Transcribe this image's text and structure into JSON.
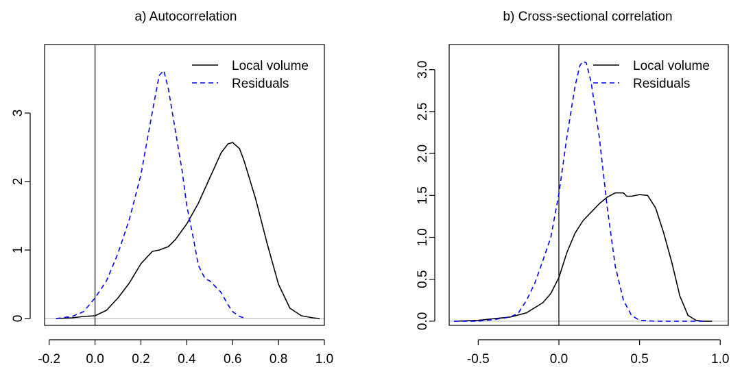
{
  "chart_data": [
    {
      "type": "line",
      "title": "a) Autocorrelation",
      "xlabel": "",
      "ylabel": "",
      "xlim": [
        -0.22,
        1.0
      ],
      "ylim": [
        -0.1,
        4.0
      ],
      "x_ticks": [
        -0.2,
        0.0,
        0.2,
        0.4,
        0.6,
        0.8,
        1.0
      ],
      "x_tick_labels": [
        "-0.2",
        "0.0",
        "0.2",
        "0.4",
        "0.6",
        "0.8",
        "1.0"
      ],
      "y_ticks": [
        0,
        1,
        2,
        3
      ],
      "y_tick_labels": [
        "0",
        "1",
        "2",
        "3"
      ],
      "vline_x": 0,
      "hline_y": 0,
      "legend_position": "top-right",
      "series": [
        {
          "name": "Local volume",
          "color": "#000000",
          "dash": "solid",
          "x": [
            -0.17,
            -0.1,
            -0.05,
            0.0,
            0.05,
            0.1,
            0.15,
            0.2,
            0.25,
            0.28,
            0.32,
            0.35,
            0.4,
            0.45,
            0.5,
            0.55,
            0.58,
            0.6,
            0.63,
            0.65,
            0.7,
            0.75,
            0.8,
            0.85,
            0.9,
            0.95,
            0.98
          ],
          "y": [
            0.0,
            0.01,
            0.03,
            0.04,
            0.12,
            0.3,
            0.52,
            0.8,
            0.98,
            1.0,
            1.05,
            1.15,
            1.38,
            1.68,
            2.05,
            2.42,
            2.55,
            2.57,
            2.48,
            2.3,
            1.75,
            1.1,
            0.5,
            0.15,
            0.04,
            0.01,
            0.0
          ]
        },
        {
          "name": "Residuals",
          "color": "#0000ff",
          "dash": "dashed",
          "x": [
            -0.17,
            -0.1,
            -0.05,
            0.0,
            0.05,
            0.1,
            0.15,
            0.2,
            0.23,
            0.26,
            0.28,
            0.3,
            0.32,
            0.35,
            0.38,
            0.4,
            0.43,
            0.45,
            0.48,
            0.5,
            0.55,
            0.58,
            0.6,
            0.63,
            0.66
          ],
          "y": [
            0.0,
            0.03,
            0.1,
            0.3,
            0.55,
            0.95,
            1.45,
            2.1,
            2.65,
            3.2,
            3.55,
            3.62,
            3.35,
            2.75,
            2.15,
            1.65,
            1.15,
            0.78,
            0.58,
            0.55,
            0.38,
            0.2,
            0.1,
            0.03,
            0.0
          ]
        }
      ]
    },
    {
      "type": "line",
      "title": "b) Cross-sectional correlation",
      "xlabel": "",
      "ylabel": "",
      "xlim": [
        -0.68,
        1.05
      ],
      "ylim": [
        -0.05,
        3.3
      ],
      "x_ticks": [
        -0.5,
        0.0,
        0.5,
        1.0
      ],
      "x_tick_labels": [
        "-0.5",
        "0.0",
        "0.5",
        "1.0"
      ],
      "y_ticks": [
        0.0,
        0.5,
        1.0,
        1.5,
        2.0,
        2.5,
        3.0
      ],
      "y_tick_labels": [
        "0.0",
        "0.5",
        "1.0",
        "1.5",
        "2.0",
        "2.5",
        "3.0"
      ],
      "vline_x": 0,
      "hline_y": 0,
      "legend_position": "top-right",
      "series": [
        {
          "name": "Local volume",
          "color": "#000000",
          "dash": "solid",
          "x": [
            -0.65,
            -0.5,
            -0.4,
            -0.3,
            -0.2,
            -0.1,
            -0.05,
            0.0,
            0.05,
            0.1,
            0.15,
            0.2,
            0.25,
            0.3,
            0.35,
            0.4,
            0.42,
            0.45,
            0.5,
            0.55,
            0.6,
            0.65,
            0.7,
            0.75,
            0.8,
            0.85,
            0.9,
            0.95
          ],
          "y": [
            0.0,
            0.01,
            0.03,
            0.05,
            0.1,
            0.22,
            0.33,
            0.52,
            0.82,
            1.05,
            1.2,
            1.3,
            1.4,
            1.48,
            1.53,
            1.53,
            1.49,
            1.49,
            1.51,
            1.5,
            1.35,
            1.05,
            0.7,
            0.3,
            0.07,
            0.01,
            0.0,
            0.0
          ]
        },
        {
          "name": "Residuals",
          "color": "#0000ff",
          "dash": "dashed",
          "x": [
            -0.65,
            -0.5,
            -0.4,
            -0.3,
            -0.25,
            -0.2,
            -0.15,
            -0.1,
            -0.05,
            0.0,
            0.05,
            0.1,
            0.13,
            0.15,
            0.17,
            0.2,
            0.25,
            0.3,
            0.35,
            0.4,
            0.45,
            0.5,
            0.6,
            0.7,
            0.8,
            0.9
          ],
          "y": [
            0.0,
            0.0,
            0.02,
            0.05,
            0.1,
            0.25,
            0.45,
            0.72,
            1.0,
            1.52,
            2.2,
            2.8,
            3.05,
            3.1,
            3.08,
            2.85,
            2.2,
            1.35,
            0.65,
            0.25,
            0.07,
            0.01,
            0.0,
            0.0,
            0.0,
            0.0
          ]
        }
      ]
    }
  ]
}
